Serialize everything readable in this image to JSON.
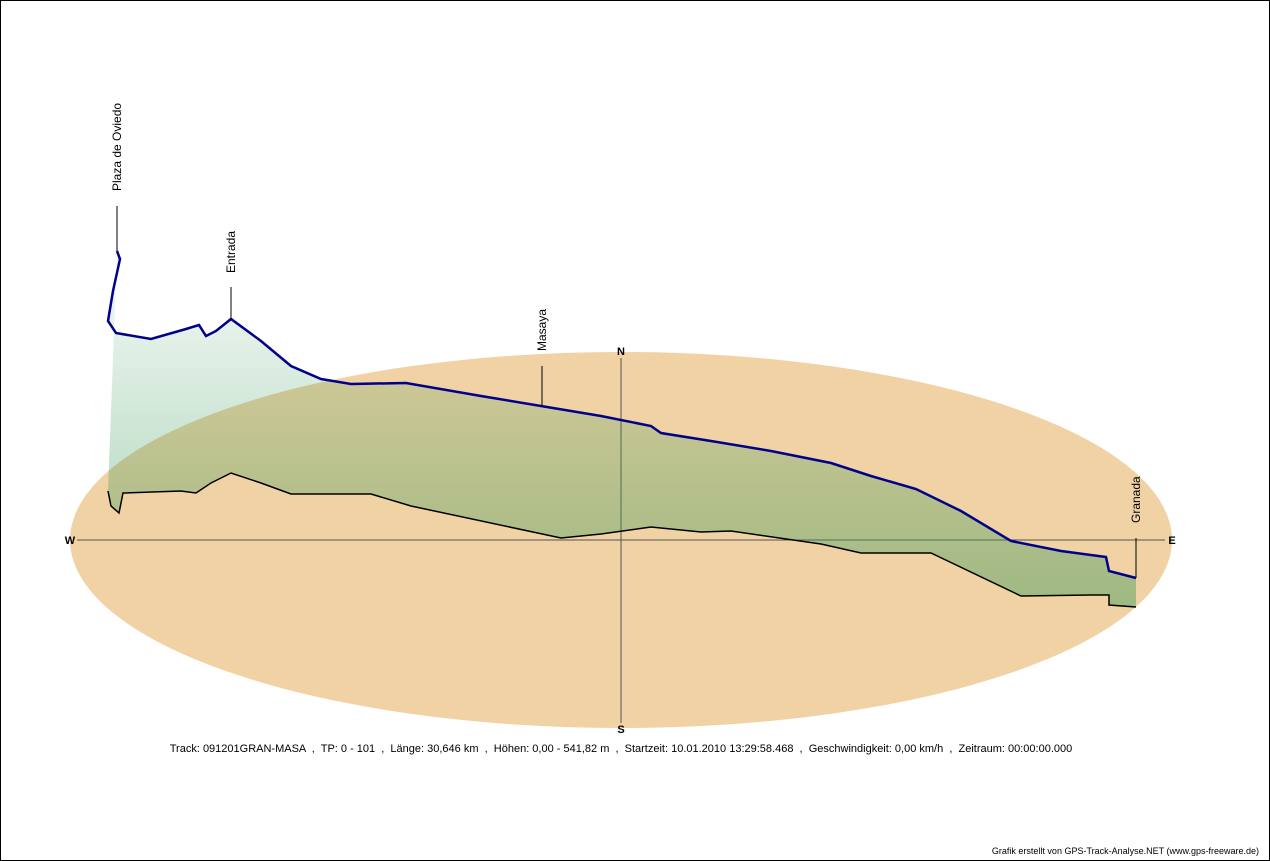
{
  "compass": {
    "north": "N",
    "south": "S",
    "west": "W",
    "east": "E"
  },
  "waypoints": [
    {
      "name": "Plaza de Oviedo"
    },
    {
      "name": "Entrada"
    },
    {
      "name": "Masaya"
    },
    {
      "name": "Granada"
    }
  ],
  "colors": {
    "ground": "#f0d2a4",
    "track": "#00008b",
    "curtain": "#3a9a5a",
    "base": "#000000"
  },
  "info_line": "Track: 091201GRAN-MASA  ,  TP: 0 - 101  ,  Länge: 30,646 km  ,  Höhen: 0,00 - 541,82 m  ,  Startzeit: 10.01.2010 13:29:58.468  ,  Geschwindigkeit: 0,00 km/h  ,  Zeitraum: 00:00:00.000",
  "credit": "Grafik erstellt von GPS-Track-Analyse.NET (www.gps-freeware.de)"
}
